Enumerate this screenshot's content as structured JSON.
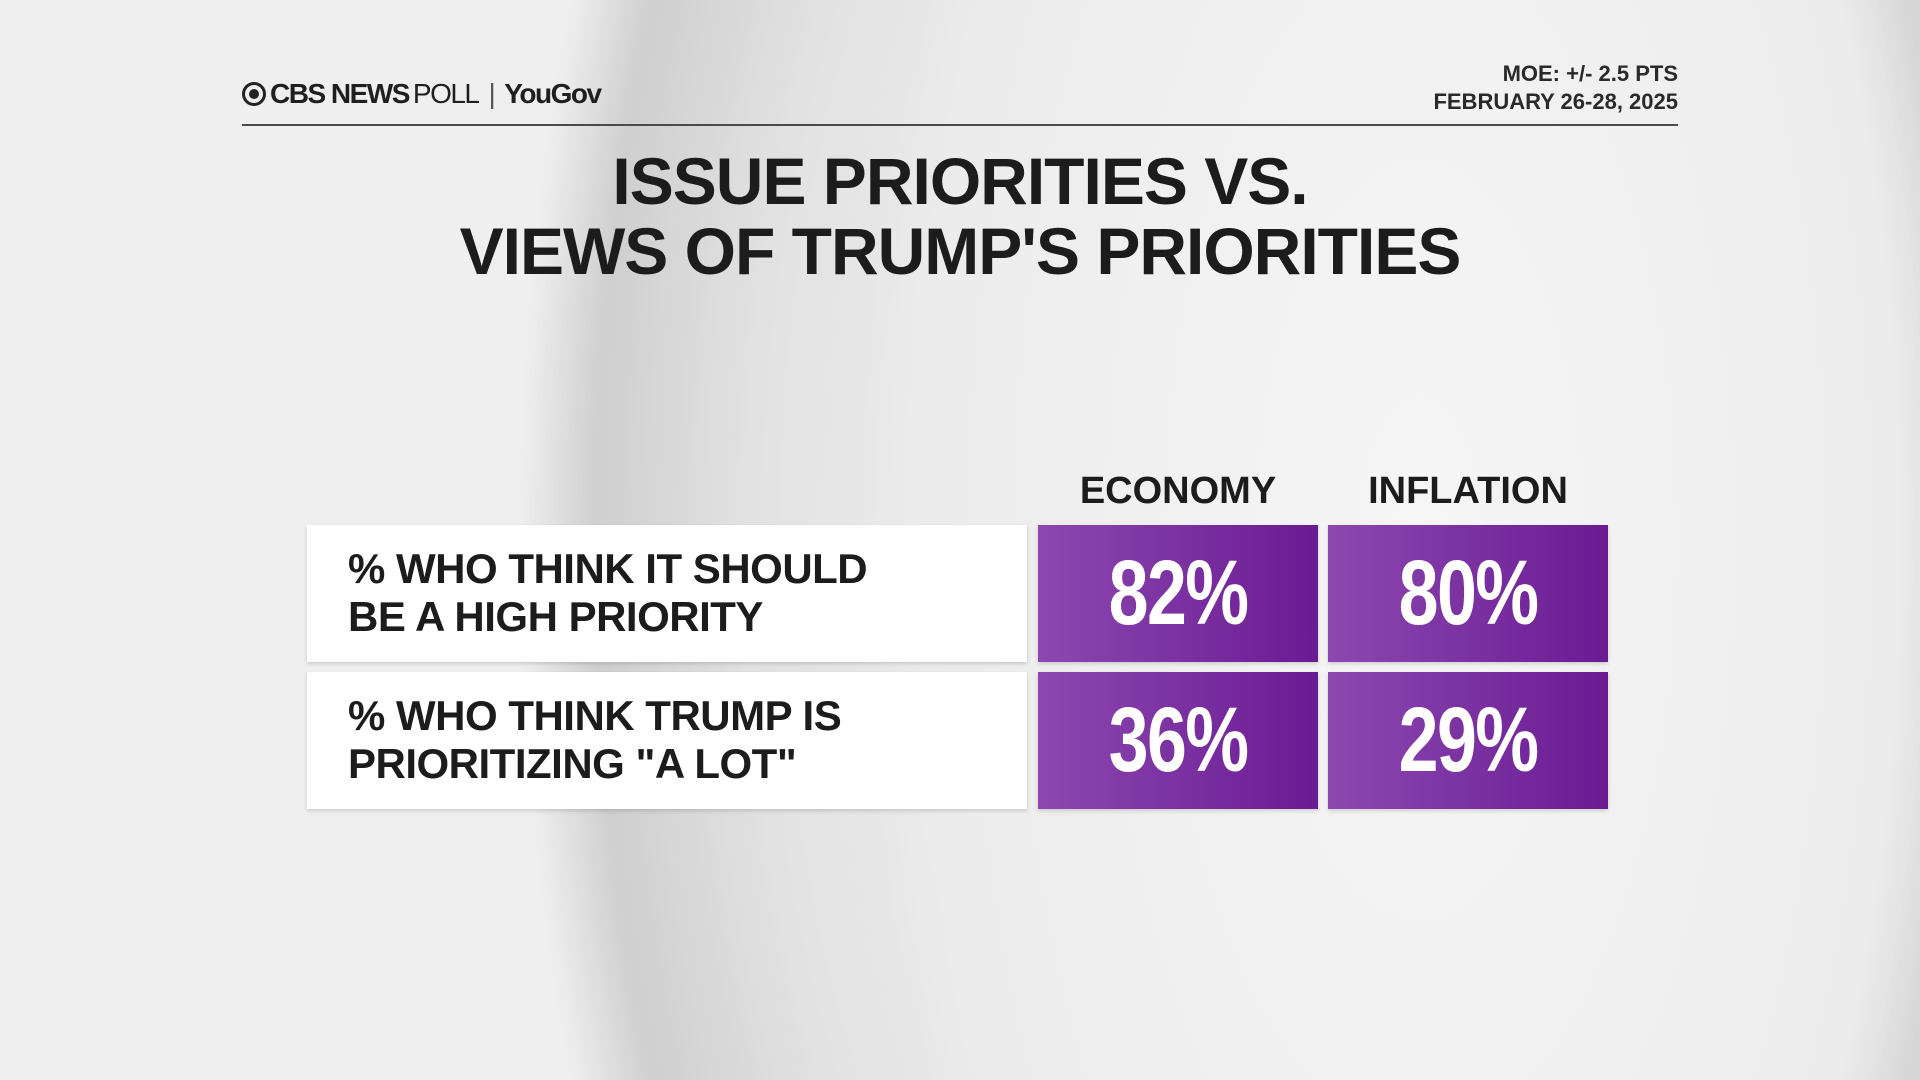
{
  "header": {
    "logo_text": "CBS NEWS",
    "logo_poll": "POLL",
    "partner": "YouGov",
    "moe": "MOE: +/- 2.5 PTS",
    "dates": "FEBRUARY 26-28, 2025"
  },
  "title": {
    "line1": "ISSUE PRIORITIES VS.",
    "line2": "VIEWS OF TRUMP'S PRIORITIES"
  },
  "colors": {
    "cell_start": "#8c48b0",
    "cell_end": "#6a1b93"
  },
  "chart_data": {
    "type": "table",
    "title": "ISSUE PRIORITIES VS. VIEWS OF TRUMP'S PRIORITIES",
    "columns": [
      "ECONOMY",
      "INFLATION"
    ],
    "rows": [
      {
        "label_line1": "% WHO THINK IT SHOULD",
        "label_line2": "BE A HIGH PRIORITY",
        "values": [
          "82%",
          "80%"
        ]
      },
      {
        "label_line1": "% WHO THINK TRUMP IS",
        "label_line2": "PRIORITIZING \"A LOT\"",
        "values": [
          "36%",
          "29%"
        ]
      }
    ]
  }
}
